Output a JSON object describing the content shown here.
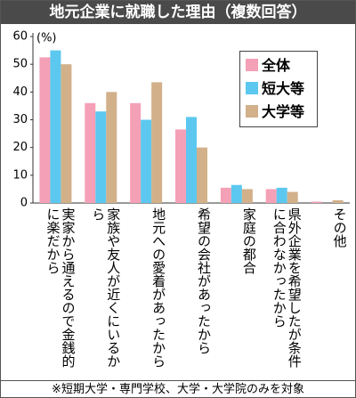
{
  "chart_data": {
    "type": "bar",
    "title": "地元企業に就職した理由（複数回答）",
    "y_unit": "(%)",
    "categories": [
      "実家から通えるので金銭的に楽だから",
      "家族や友人が近くにいるから",
      "地元への愛着があったから",
      "希望の会社があったから",
      "家庭の都合",
      "県外企業を希望したが条件に合わなかったから",
      "その他"
    ],
    "series": [
      {
        "name": "全体",
        "color": "#f4a0b6",
        "values": [
          52.5,
          36,
          36,
          26.5,
          5.5,
          5,
          0.5
        ]
      },
      {
        "name": "短大等",
        "color": "#5cc8ef",
        "values": [
          55,
          33,
          30,
          31,
          6.5,
          5.5,
          0
        ]
      },
      {
        "name": "大学等",
        "color": "#d2b08a",
        "values": [
          50,
          40,
          43.5,
          20,
          5,
          4,
          1
        ]
      }
    ],
    "ylim": [
      0,
      60
    ],
    "yticks": [
      0,
      10,
      20,
      30,
      40,
      50,
      60
    ],
    "grid": false,
    "legend": "upper right",
    "footnote": "※短期大学・専門学校、大学・大学院のみを対象"
  }
}
